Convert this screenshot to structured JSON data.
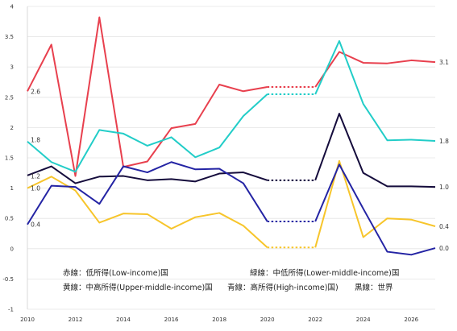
{
  "chart_data": {
    "type": "line",
    "title": "",
    "xlabel": "",
    "ylabel": "",
    "xlim": [
      2010,
      2027
    ],
    "ylim": [
      -1,
      4
    ],
    "x_ticks": [
      "2010",
      "2012",
      "2014",
      "2016",
      "2018",
      "2020",
      "2022",
      "2024",
      "2026"
    ],
    "y_ticks": [
      "4",
      "3.5",
      "3",
      "2.5",
      "2",
      "1.5",
      "1",
      "0.5",
      "0",
      "-0.5",
      "-1"
    ],
    "grid": "horizontal",
    "years": [
      2010,
      2011,
      2012,
      2013,
      2014,
      2015,
      2016,
      2017,
      2018,
      2019,
      2020,
      2021,
      2022,
      2023,
      2024,
      2025,
      2026,
      2027
    ],
    "gap_years": [
      2021
    ],
    "series": [
      {
        "key": "red",
        "color": "#e8404e",
        "values": [
          2.6,
          3.37,
          1.2,
          3.82,
          1.35,
          1.44,
          1.99,
          2.06,
          2.71,
          2.6,
          2.67,
          2.67,
          2.67,
          3.25,
          3.07,
          3.06,
          3.11,
          3.08
        ],
        "start_label": "2.6",
        "end_label": "3.1"
      },
      {
        "key": "teal",
        "color": "#22cdc8",
        "values": [
          1.77,
          1.43,
          1.27,
          1.96,
          1.9,
          1.7,
          1.84,
          1.51,
          1.67,
          2.19,
          2.55,
          2.55,
          2.55,
          3.43,
          2.39,
          1.79,
          1.8,
          1.78
        ],
        "start_label": "1.8",
        "end_label": "1.8"
      },
      {
        "key": "black",
        "color": "#150c3c",
        "values": [
          1.21,
          1.36,
          1.08,
          1.19,
          1.2,
          1.13,
          1.15,
          1.11,
          1.24,
          1.26,
          1.13,
          1.13,
          1.13,
          2.23,
          1.25,
          1.03,
          1.03,
          1.02
        ],
        "start_label": "1.2",
        "end_label": "1.0"
      },
      {
        "key": "yellow",
        "color": "#f7c52b",
        "values": [
          1.0,
          1.19,
          0.96,
          0.43,
          0.58,
          0.57,
          0.33,
          0.52,
          0.59,
          0.38,
          0.02,
          0.02,
          0.02,
          1.45,
          0.19,
          0.5,
          0.48,
          0.37
        ],
        "start_label": "1.0",
        "end_label": "0.4"
      },
      {
        "key": "blue",
        "color": "#2424a4",
        "values": [
          0.4,
          1.04,
          1.02,
          0.74,
          1.36,
          1.26,
          1.43,
          1.31,
          1.32,
          1.08,
          0.45,
          0.45,
          0.45,
          1.39,
          0.66,
          -0.05,
          -0.1,
          0.01
        ],
        "start_label": "0.4",
        "end_label": "0.0"
      }
    ],
    "legend": [
      "赤線：低所得(Low-income)国",
      "緑線：中低所得(Lower-middle-income)国",
      "黄線：中高所得(Upper-middle-income)国",
      "青線：高所得(High-income)国)",
      "黒線：世界"
    ]
  }
}
